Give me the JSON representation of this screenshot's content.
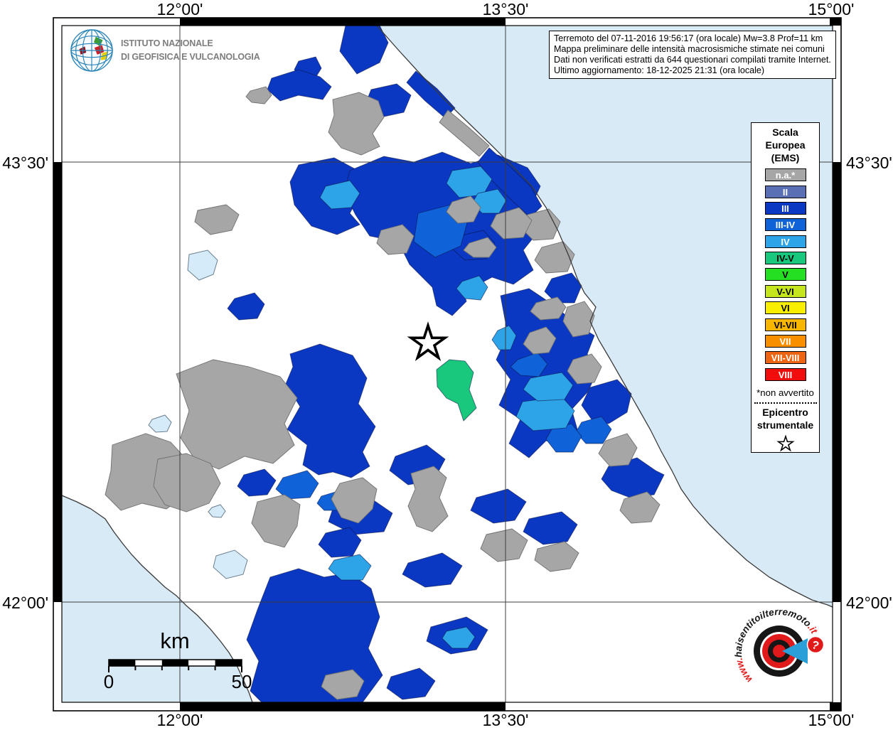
{
  "branding": {
    "ingv": {
      "logo_icon": "ingv-globe-icon",
      "line1": "ISTITUTO NAZIONALE",
      "line2": "DI GEOFISICA E VULCANOLOGIA"
    },
    "hsit": {
      "icon": "haisentitoilterremoto-bullseye-icon",
      "prefix": "www.",
      "middle": "haisentitoilterremoto",
      "suffix": ".it",
      "question_mark": "?",
      "accent": "#e01a1a"
    }
  },
  "info_box": {
    "lines": [
      "Terremoto del 07-11-2016 19:56:17 (ora locale) Mw=3.8 Prof=11 km",
      "Mappa preliminare delle intensità macrosismiche stimate nei comuni",
      "Dati non verificati estratti da 644 questionari compilati tramite Internet.",
      "Ultimo aggiornamento: 18-12-2025 21:31 (ora locale)"
    ]
  },
  "axes": {
    "top": [
      "12°00'",
      "13°30'",
      "15°00'"
    ],
    "bottom": [
      "12°00'",
      "13°30'",
      "15°00'"
    ],
    "left": [
      "43°30'",
      "42°00'"
    ],
    "right": [
      "43°30'",
      "42°00'"
    ]
  },
  "legend": {
    "title_lines": [
      "Scala",
      "Europea",
      "(EMS)"
    ],
    "items": [
      {
        "label": "n.a.*",
        "color": "#a6a6a6",
        "text_color": "#ffffff"
      },
      {
        "label": "II",
        "color": "#5b6fb5",
        "text_color": "#ffffff"
      },
      {
        "label": "III",
        "color": "#0a38c2",
        "text_color": "#ffffff"
      },
      {
        "label": "III-IV",
        "color": "#0f62d8",
        "text_color": "#ffffff"
      },
      {
        "label": "IV",
        "color": "#2da4e8",
        "text_color": "#ffffff"
      },
      {
        "label": "IV-V",
        "color": "#19c87c",
        "text_color": "#000000"
      },
      {
        "label": "V",
        "color": "#25e022",
        "text_color": "#000000"
      },
      {
        "label": "V-VI",
        "color": "#c5e61c",
        "text_color": "#000000"
      },
      {
        "label": "VI",
        "color": "#f9ee00",
        "text_color": "#000000"
      },
      {
        "label": "VI-VII",
        "color": "#f7b500",
        "text_color": "#000000"
      },
      {
        "label": "VII",
        "color": "#f78f00",
        "text_color": "#ffffff"
      },
      {
        "label": "VII-VIII",
        "color": "#ef6410",
        "text_color": "#ffffff"
      },
      {
        "label": "VIII",
        "color": "#f20d0d",
        "text_color": "#ffffff"
      }
    ],
    "footnote": "*non avvertito",
    "epicenter_title_lines": [
      "Epicentro",
      "strumentale"
    ],
    "epicenter_icon": "star-icon"
  },
  "scale_bar": {
    "unit": "km",
    "start_label": "0",
    "end_label": "50"
  },
  "map": {
    "epicenter_icon": "star-icon",
    "colors": {
      "sea": "#d9eaf7",
      "land": "#ffffff",
      "lake": "#d6ebfa",
      "grid": "#3d3d3d",
      "coast": "#3a3a3a",
      "frame_black": "#000000",
      "na": "#a6a6a6",
      "iii": "#0a38c2",
      "iii_iv": "#0f62d8",
      "iv": "#2da4e8",
      "iv_v": "#19c87c"
    }
  }
}
